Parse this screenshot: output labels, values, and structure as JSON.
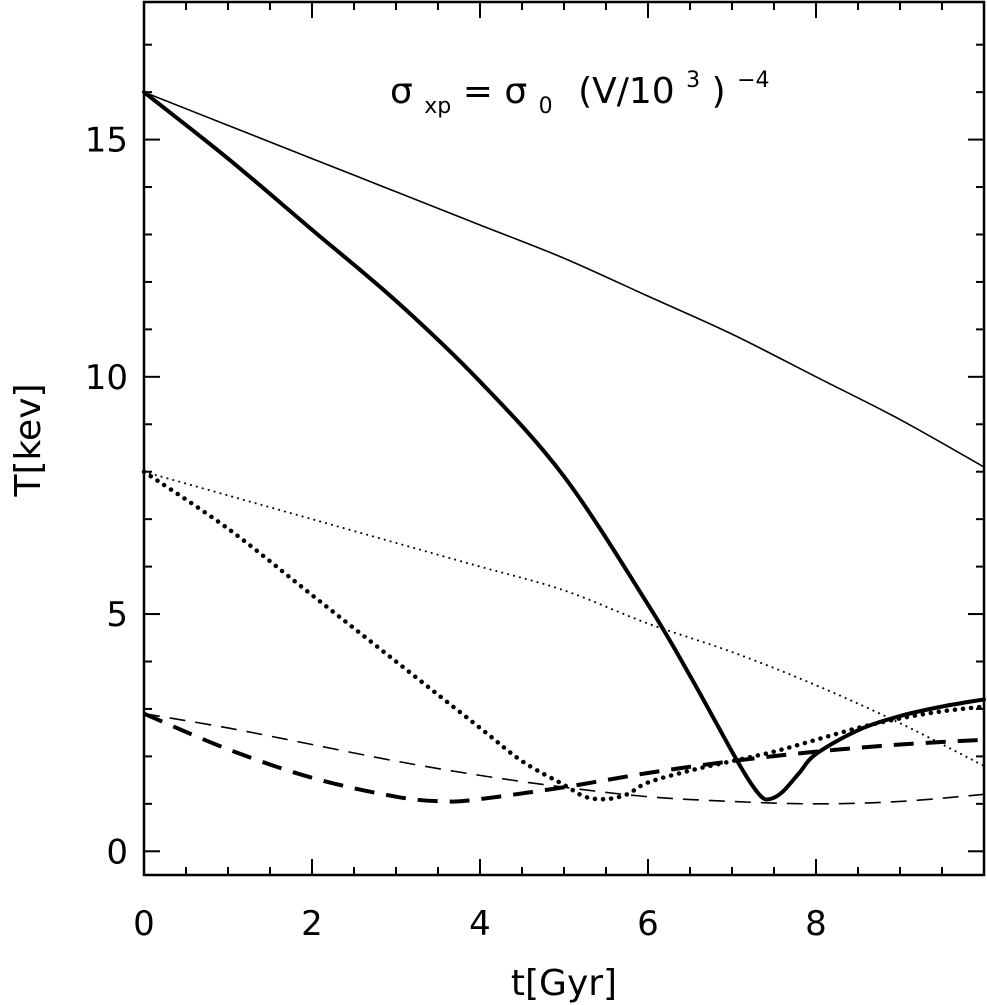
{
  "chart_data": {
    "type": "line",
    "xlabel": "t[Gyr]",
    "ylabel": "T[kev]",
    "xlim": [
      0,
      10
    ],
    "ylim": [
      -0.5,
      17.9
    ],
    "x_ticks": [
      0,
      2,
      4,
      6,
      8
    ],
    "y_ticks": [
      0,
      5,
      10,
      15
    ],
    "x_minor_step": 0.5,
    "y_minor_step": 1,
    "grid": false,
    "annotation": {
      "sigma": "σ",
      "sub1": "xp",
      "equals": "=",
      "sigma2": "σ",
      "sub2": "0",
      "body": "(V/10",
      "sup1": "3",
      "close": ")",
      "sup2": "−4"
    },
    "series": [
      {
        "style": "thin-solid",
        "x": [
          0,
          1,
          2,
          3,
          4,
          5,
          6,
          7,
          8,
          9,
          10
        ],
        "y": [
          16.0,
          15.3,
          14.6,
          13.9,
          13.2,
          12.5,
          11.7,
          10.9,
          10.0,
          9.1,
          8.1
        ]
      },
      {
        "style": "thick-solid",
        "x": [
          0,
          1,
          2,
          3,
          4,
          5,
          6,
          6.5,
          7,
          7.2,
          7.35,
          7.45,
          7.6,
          7.8,
          8,
          8.5,
          9,
          9.5,
          10
        ],
        "y": [
          16.0,
          14.6,
          13.1,
          11.6,
          9.9,
          7.9,
          5.2,
          3.7,
          2.1,
          1.5,
          1.15,
          1.1,
          1.25,
          1.65,
          2.05,
          2.55,
          2.85,
          3.05,
          3.2
        ]
      },
      {
        "style": "thin-dotted",
        "x": [
          0,
          1,
          2,
          3,
          4,
          5,
          6,
          7,
          8,
          9,
          10
        ],
        "y": [
          8.0,
          7.5,
          7.0,
          6.5,
          6.0,
          5.5,
          4.8,
          4.2,
          3.5,
          2.7,
          1.8
        ]
      },
      {
        "style": "thick-dotted",
        "x": [
          0,
          1,
          2,
          3,
          4,
          4.5,
          5,
          5.25,
          5.5,
          5.75,
          6,
          6.5,
          7,
          7.5,
          8,
          8.5,
          9,
          9.5,
          10
        ],
        "y": [
          8.0,
          6.8,
          5.4,
          4.0,
          2.6,
          1.9,
          1.4,
          1.15,
          1.1,
          1.2,
          1.45,
          1.7,
          1.9,
          2.1,
          2.35,
          2.6,
          2.8,
          2.95,
          3.05
        ]
      },
      {
        "style": "thin-dashed",
        "x": [
          0,
          1,
          2,
          3,
          4,
          5,
          6,
          7,
          8,
          9,
          10
        ],
        "y": [
          2.9,
          2.6,
          2.25,
          1.9,
          1.6,
          1.35,
          1.15,
          1.05,
          1.0,
          1.05,
          1.2
        ]
      },
      {
        "style": "thick-dashed",
        "x": [
          0,
          1,
          2,
          3,
          3.6,
          4,
          5,
          6,
          7,
          8,
          9,
          10
        ],
        "y": [
          2.9,
          2.15,
          1.55,
          1.15,
          1.05,
          1.1,
          1.35,
          1.65,
          1.9,
          2.1,
          2.25,
          2.35
        ]
      }
    ]
  }
}
